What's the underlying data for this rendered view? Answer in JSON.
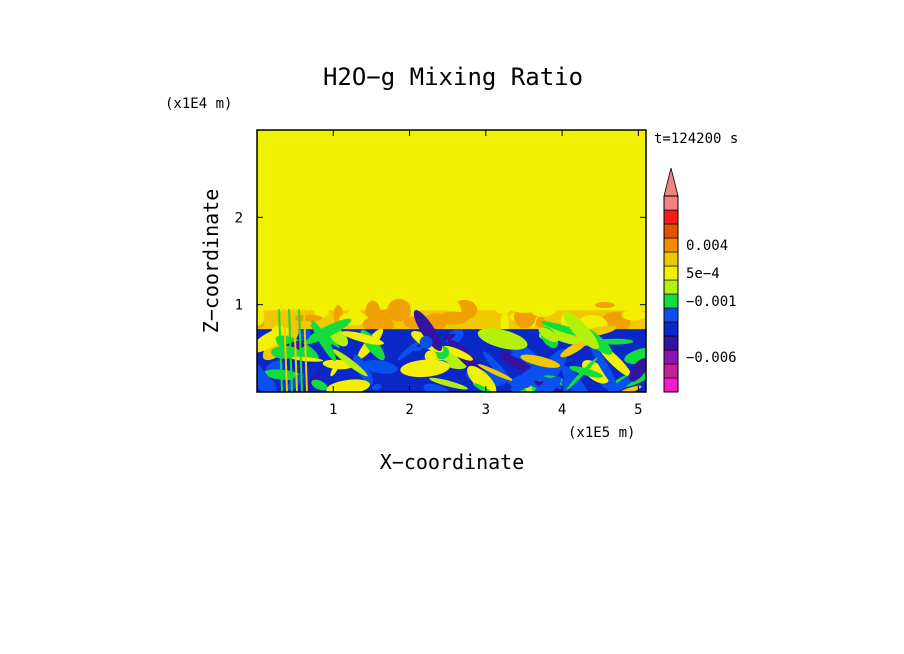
{
  "chart_data": {
    "type": "heatmap",
    "title": "H2O−g Mixing Ratio",
    "xlabel": "X−coordinate",
    "ylabel": "Z−coordinate",
    "x_unit": "(x1E5 m)",
    "y_unit": "(x1E4 m)",
    "time_label": "t=124200 s",
    "x_ticks": [
      {
        "value": 1,
        "label": "1"
      },
      {
        "value": 2,
        "label": "2"
      },
      {
        "value": 3,
        "label": "3"
      },
      {
        "value": 4,
        "label": "4"
      },
      {
        "value": 5,
        "label": "5"
      }
    ],
    "y_ticks": [
      {
        "value": 1,
        "label": "1"
      },
      {
        "value": 2,
        "label": "2"
      }
    ],
    "xlim": [
      0,
      5.1
    ],
    "ylim": [
      0,
      3.0
    ],
    "colorbar": {
      "levels": [
        "#f01ec8",
        "#c81ea0",
        "#8c14b4",
        "#3214a0",
        "#0a28c8",
        "#0a50f0",
        "#14dc3c",
        "#b4f00a",
        "#f0f000",
        "#f0c800",
        "#f08c00",
        "#e65000",
        "#f01e1e",
        "#f08282"
      ],
      "tick_labels": [
        {
          "label": "0.004",
          "level_boundary": 10.5
        },
        {
          "label": "5e−4",
          "level_boundary": 8.5
        },
        {
          "label": "−0.001",
          "level_boundary": 6.5
        },
        {
          "label": "−0.006",
          "level_boundary": 2.5
        }
      ],
      "extend": "max"
    },
    "regions": {
      "upper_background": "#f0f000",
      "transition_band_top": 1.05,
      "boundary_layer_top": 0.72
    }
  }
}
